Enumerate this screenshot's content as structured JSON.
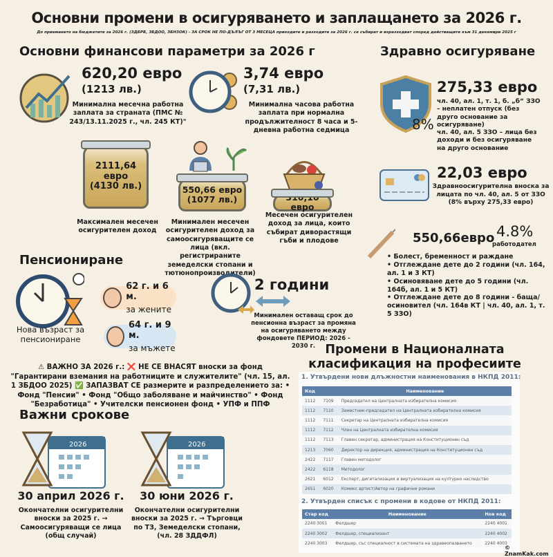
{
  "title": "Основни промени в осигуряването и заплащането за 2026 г.",
  "subtitle": "До приемането на бюджетите за 2026 г. (ЗДБРБ, ЗБДОО, ЗБНЗОК) - ЗА СРОК НЕ ПО-ДЪЛЪГ ОТ 3 МЕСЕЦА приходите и разходите за 2026 г. се събират и изразходват според действащите към 31 декември 2025 г",
  "finance": {
    "heading": "Основни финансови параметри за 2026 г",
    "min_wage": {
      "value": "620,20 евро",
      "bgn": "(1213 лв.)",
      "desc": "Минимална месечна работна заплата за страната (ПМС № 243/13.11.2025 г., чл. 245 КТ)\""
    },
    "hourly": {
      "value": "3,74 евро",
      "bgn": "(7,31 лв.)",
      "desc": "Минимална часова работна заплата при нормална продължителност 8 часа и 5-дневна работна седмица"
    },
    "max_income": {
      "value": "2111,64 евро",
      "bgn": "(4130 лв.)",
      "desc": "Максимален месечен осигурителен доход"
    },
    "self_insured": {
      "value": "550,66 евро",
      "bgn": "(1077 лв.)",
      "desc": "Минимален месечен осигурителен доход за самоосигуряващите се лица (вкл. регистрираните земеделски стопани и тютюнопроизводители)"
    },
    "foragers": {
      "value": "310,10 евро",
      "desc": "Месечен осигурителен доход за лица, които събират диворастящи гъби и плодове"
    }
  },
  "health": {
    "heading": "Здравно осигуряване",
    "base": {
      "value": "275,33 евро",
      "percent": "8%",
      "bullets": [
        "чл. 40, ал. 1, т. 1, б. „б“ ЗЗО – неплатен отпуск (без друго основание за осигуряване)",
        "чл. 40, ал. 5 ЗЗО – лица без доходи и без осигуряване на друго основание"
      ]
    },
    "contribution": {
      "value": "22,03 евро",
      "desc": "Здравноосигурителна вноска за лицата по чл. 40, ал. 5 от ЗЗО (8% върху 275,33 евро)"
    },
    "employer": {
      "value": "550,66евро",
      "percent": "4.8%",
      "label": "работодател",
      "bullets": [
        "• Болест, бременност и раждане",
        "• Отглеждане дете до 2 години (чл. 164, ал. 1 и 3 КТ)",
        "• Осиновяване дете до 5 години (чл. 164б, ал. 1 и 5 КТ)",
        "• Отглеждане дете до 8 години - баща/осиновител (чл. 164в КТ | чл. 40, ал. 1, т. 5 ЗЗО)"
      ]
    }
  },
  "pension": {
    "heading": "Пенсиониране",
    "new_age_label": "Нова възраст за пенсиониране",
    "women": {
      "age": "62 г. и 6 м.",
      "label": "за жените"
    },
    "men": {
      "age": "64 г. и 9 м.",
      "label": "за мъжете"
    },
    "term": {
      "value": "2 години",
      "desc": "Минимален оставащ срок до пенсионна възраст за промяна на осигуряването между фондовете ПЕРИОД: 2026 - 2030 г."
    }
  },
  "important": "⚠ ВАЖНО ЗА 2026 г.: ❌ НЕ СЕ ВНАСЯТ вноски за фонд \"Гарантирани вземания на работниците и служителите\" (чл. 15, ал. 1 ЗБДОО 2025) ✅ ЗАПАЗВАТ СЕ размерите и разпределението за: • Фонд \"Пенсии\" • Фонд \"Общо заболяване и майчинство\" • Фонд \"Безработица\" • Учителски пенсионен фонд • УПФ и ППФ",
  "deadlines": {
    "heading": "Важни срокове",
    "calendar_year": "2026",
    "items": [
      {
        "date": "30 април 2026 г.",
        "desc": "Окончателни осигурителни вноски за 2025 г. → Самоосигуряващи се лица (общ случай)"
      },
      {
        "date": "30 юни 2026 г.",
        "desc": "Окончателни осигурителни вноски за 2025 г. → Търговци по ТЗ, Земеделски стопани, (чл. 28 ЗДДФЛ)"
      }
    ]
  },
  "nkpd": {
    "heading": "Промени в Националната класификация на професиите",
    "t1_title": "1. Утвърдени нови длъжностни наименования в НКПД 2011:",
    "t1_headers": [
      "Код",
      "",
      "Наименование"
    ],
    "t1_rows": [
      [
        "1112",
        "7109",
        "Председател на Централната избирателна комисия"
      ],
      [
        "1112",
        "7110",
        "Заместник-председател на Централната избирателна комисия"
      ],
      [
        "1112",
        "7111",
        "Секретар на Централната избирателна комисия"
      ],
      [
        "1112",
        "7112",
        "Член на Централната избирателна комисия"
      ],
      [
        "1112",
        "7113",
        "Главен секретар, администрация на Конституционен съд"
      ],
      [
        "1213",
        "7060",
        "Директор на дирекция, администрация на Конституционен съд"
      ],
      [
        "2422",
        "7117",
        "Главен методолог"
      ],
      [
        "2422",
        "6118",
        "Методолог"
      ],
      [
        "2621",
        "6012",
        "Експерт, дигитализация и виртуализация на културно наследство"
      ],
      [
        "2651",
        "6020",
        "Комикс артист/Автор на графични романи"
      ]
    ],
    "t2_title": "2. Утвърден списък с промени в кодове от НКПД 2011:",
    "t2_headers": [
      "Стар код",
      "Наименование",
      "Нов код"
    ],
    "t2_rows": [
      [
        "2240 3001",
        "Фелдшер",
        "2240 4001"
      ],
      [
        "2240 3002",
        "Фелдшер, специализант",
        "2240 4002"
      ],
      [
        "2240 3003",
        "Фелдшер, със специалност в системата на здравеопазването",
        "2240 4003"
      ]
    ]
  },
  "watermark": "© ZnamKak.com"
}
